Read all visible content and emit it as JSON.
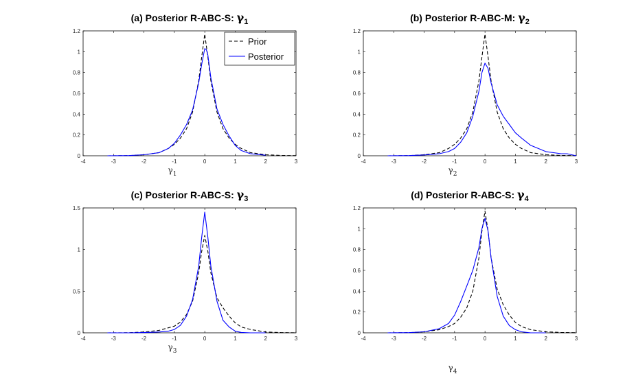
{
  "chart_data": [
    {
      "type": "line",
      "title_text": "(a) Posterior R-ABC-S: ",
      "title_sym": "γ",
      "title_sub": "1",
      "xlabel_sym": "γ",
      "xlabel_sub": "1",
      "xlim": [
        -4,
        3
      ],
      "ylim": [
        0,
        1.2
      ],
      "xticks": [
        "-4",
        "-3",
        "-2",
        "-1",
        "0",
        "1",
        "2",
        "3"
      ],
      "yticks": [
        "0",
        "0.2",
        "0.4",
        "0.6",
        "0.8",
        "1",
        "1.2"
      ],
      "legend": {
        "position": "top-right",
        "entries": [
          "Prior",
          "Posterior"
        ]
      },
      "series": [
        {
          "name": "Prior",
          "color": "#000000",
          "dash": "dashed",
          "x": [
            -3.2,
            -2.5,
            -2.0,
            -1.5,
            -1.2,
            -1.0,
            -0.8,
            -0.6,
            -0.4,
            -0.2,
            -0.1,
            0.0,
            0.1,
            0.2,
            0.4,
            0.6,
            0.8,
            1.0,
            1.2,
            1.5,
            2.0,
            2.5,
            3.0
          ],
          "y": [
            0.0,
            0.002,
            0.01,
            0.03,
            0.07,
            0.11,
            0.17,
            0.26,
            0.42,
            0.72,
            0.95,
            1.17,
            0.95,
            0.72,
            0.42,
            0.26,
            0.17,
            0.11,
            0.07,
            0.03,
            0.01,
            0.003,
            0.001
          ]
        },
        {
          "name": "Posterior",
          "color": "#0000ff",
          "dash": "solid",
          "x": [
            -3.2,
            -2.5,
            -2.0,
            -1.5,
            -1.2,
            -1.0,
            -0.8,
            -0.6,
            -0.4,
            -0.2,
            -0.1,
            0.0,
            0.05,
            0.1,
            0.2,
            0.4,
            0.6,
            0.8,
            1.0,
            1.2,
            1.5,
            2.0
          ],
          "y": [
            0.0,
            0.002,
            0.01,
            0.03,
            0.07,
            0.12,
            0.2,
            0.3,
            0.44,
            0.7,
            0.88,
            1.03,
            1.02,
            0.97,
            0.75,
            0.45,
            0.3,
            0.19,
            0.1,
            0.05,
            0.02,
            0.005
          ]
        }
      ]
    },
    {
      "type": "line",
      "title_text": "(b) Posterior R-ABC-M: ",
      "title_sym": "γ",
      "title_sub": "2",
      "xlabel_sym": "γ",
      "xlabel_sub": "2",
      "xlim": [
        -4,
        3
      ],
      "ylim": [
        0,
        1.2
      ],
      "xticks": [
        "-4",
        "-3",
        "-2",
        "-1",
        "0",
        "1",
        "2",
        "3"
      ],
      "yticks": [
        "0",
        "0.2",
        "0.4",
        "0.6",
        "0.8",
        "1",
        "1.2"
      ],
      "series": [
        {
          "name": "Prior",
          "color": "#000000",
          "dash": "dashed",
          "x": [
            -3.2,
            -2.5,
            -2.0,
            -1.5,
            -1.2,
            -1.0,
            -0.8,
            -0.6,
            -0.4,
            -0.2,
            -0.1,
            0.0,
            0.1,
            0.2,
            0.4,
            0.6,
            0.8,
            1.0,
            1.2,
            1.5,
            2.0,
            2.5,
            3.0
          ],
          "y": [
            0.0,
            0.002,
            0.01,
            0.03,
            0.07,
            0.11,
            0.17,
            0.26,
            0.42,
            0.72,
            0.95,
            1.17,
            0.95,
            0.72,
            0.42,
            0.26,
            0.17,
            0.11,
            0.07,
            0.03,
            0.01,
            0.003,
            0.001
          ]
        },
        {
          "name": "Posterior",
          "color": "#0000ff",
          "dash": "solid",
          "x": [
            -3.2,
            -2.5,
            -2.0,
            -1.5,
            -1.2,
            -1.0,
            -0.8,
            -0.6,
            -0.4,
            -0.2,
            -0.1,
            0.0,
            0.1,
            0.2,
            0.4,
            0.6,
            0.8,
            1.0,
            1.2,
            1.5,
            2.0,
            2.5,
            2.7,
            3.0
          ],
          "y": [
            0.0,
            0.002,
            0.008,
            0.02,
            0.04,
            0.07,
            0.13,
            0.22,
            0.38,
            0.62,
            0.8,
            0.89,
            0.84,
            0.7,
            0.49,
            0.38,
            0.3,
            0.22,
            0.17,
            0.1,
            0.04,
            0.02,
            0.02,
            0.0
          ]
        }
      ]
    },
    {
      "type": "line",
      "title_text": "(c) Posterior R-ABC-S: ",
      "title_sym": "γ",
      "title_sub": "3",
      "xlabel_sym": "γ",
      "xlabel_sub": "3",
      "xlim": [
        -4,
        3
      ],
      "ylim": [
        0,
        1.5
      ],
      "xticks": [
        "-4",
        "-3",
        "-2",
        "-1",
        "0",
        "1",
        "2",
        "3"
      ],
      "yticks": [
        "0",
        "0.5",
        "1",
        "1.5"
      ],
      "series": [
        {
          "name": "Prior",
          "color": "#000000",
          "dash": "dashed",
          "x": [
            -3.2,
            -2.5,
            -2.0,
            -1.5,
            -1.2,
            -1.0,
            -0.8,
            -0.6,
            -0.4,
            -0.2,
            -0.1,
            0.0,
            0.1,
            0.2,
            0.4,
            0.6,
            0.8,
            1.0,
            1.2,
            1.5,
            2.0,
            2.5,
            3.0
          ],
          "y": [
            0.0,
            0.002,
            0.01,
            0.03,
            0.06,
            0.08,
            0.13,
            0.22,
            0.38,
            0.72,
            0.98,
            1.17,
            0.98,
            0.72,
            0.42,
            0.3,
            0.2,
            0.12,
            0.07,
            0.04,
            0.01,
            0.003,
            0.001
          ]
        },
        {
          "name": "Posterior",
          "color": "#0000ff",
          "dash": "solid",
          "x": [
            -3.2,
            -2.5,
            -2.0,
            -1.5,
            -1.2,
            -1.0,
            -0.8,
            -0.6,
            -0.4,
            -0.2,
            -0.1,
            0.0,
            0.1,
            0.2,
            0.4,
            0.6,
            0.8,
            1.0,
            1.2,
            1.5,
            2.0
          ],
          "y": [
            0.0,
            0.0,
            0.003,
            0.01,
            0.02,
            0.04,
            0.09,
            0.2,
            0.4,
            0.8,
            1.15,
            1.45,
            1.15,
            0.8,
            0.38,
            0.15,
            0.07,
            0.02,
            0.005,
            0.0,
            0.0
          ]
        }
      ]
    },
    {
      "type": "line",
      "title_text": "(d) Posterior R-ABC-S: ",
      "title_sym": "γ",
      "title_sub": "4",
      "xlabel_sym": "γ",
      "xlabel_sub": "4",
      "xlim": [
        -4,
        3
      ],
      "ylim": [
        0,
        1.2
      ],
      "xticks": [
        "-4",
        "-3",
        "-2",
        "-1",
        "0",
        "1",
        "2",
        "3"
      ],
      "yticks": [
        "0",
        "0.2",
        "0.4",
        "0.6",
        "0.8",
        "1",
        "1.2"
      ],
      "series": [
        {
          "name": "Prior",
          "color": "#000000",
          "dash": "dashed",
          "x": [
            -3.2,
            -2.5,
            -2.0,
            -1.5,
            -1.2,
            -1.0,
            -0.8,
            -0.6,
            -0.4,
            -0.2,
            -0.1,
            0.0,
            0.1,
            0.2,
            0.4,
            0.6,
            0.8,
            1.0,
            1.2,
            1.5,
            2.0,
            2.5,
            3.0
          ],
          "y": [
            0.0,
            0.002,
            0.01,
            0.03,
            0.06,
            0.09,
            0.15,
            0.24,
            0.4,
            0.72,
            0.98,
            1.17,
            0.98,
            0.72,
            0.42,
            0.27,
            0.17,
            0.1,
            0.06,
            0.03,
            0.01,
            0.003,
            0.001
          ]
        },
        {
          "name": "Posterior",
          "color": "#0000ff",
          "dash": "solid",
          "x": [
            -3.2,
            -2.5,
            -2.0,
            -1.5,
            -1.2,
            -1.0,
            -0.8,
            -0.6,
            -0.4,
            -0.2,
            -0.1,
            0.0,
            0.1,
            0.2,
            0.4,
            0.6,
            0.8,
            1.0,
            1.2,
            1.5,
            2.0
          ],
          "y": [
            0.0,
            0.002,
            0.01,
            0.04,
            0.09,
            0.17,
            0.3,
            0.45,
            0.6,
            0.82,
            1.0,
            1.1,
            0.98,
            0.72,
            0.35,
            0.16,
            0.07,
            0.03,
            0.01,
            0.0,
            0.0
          ]
        }
      ]
    }
  ]
}
